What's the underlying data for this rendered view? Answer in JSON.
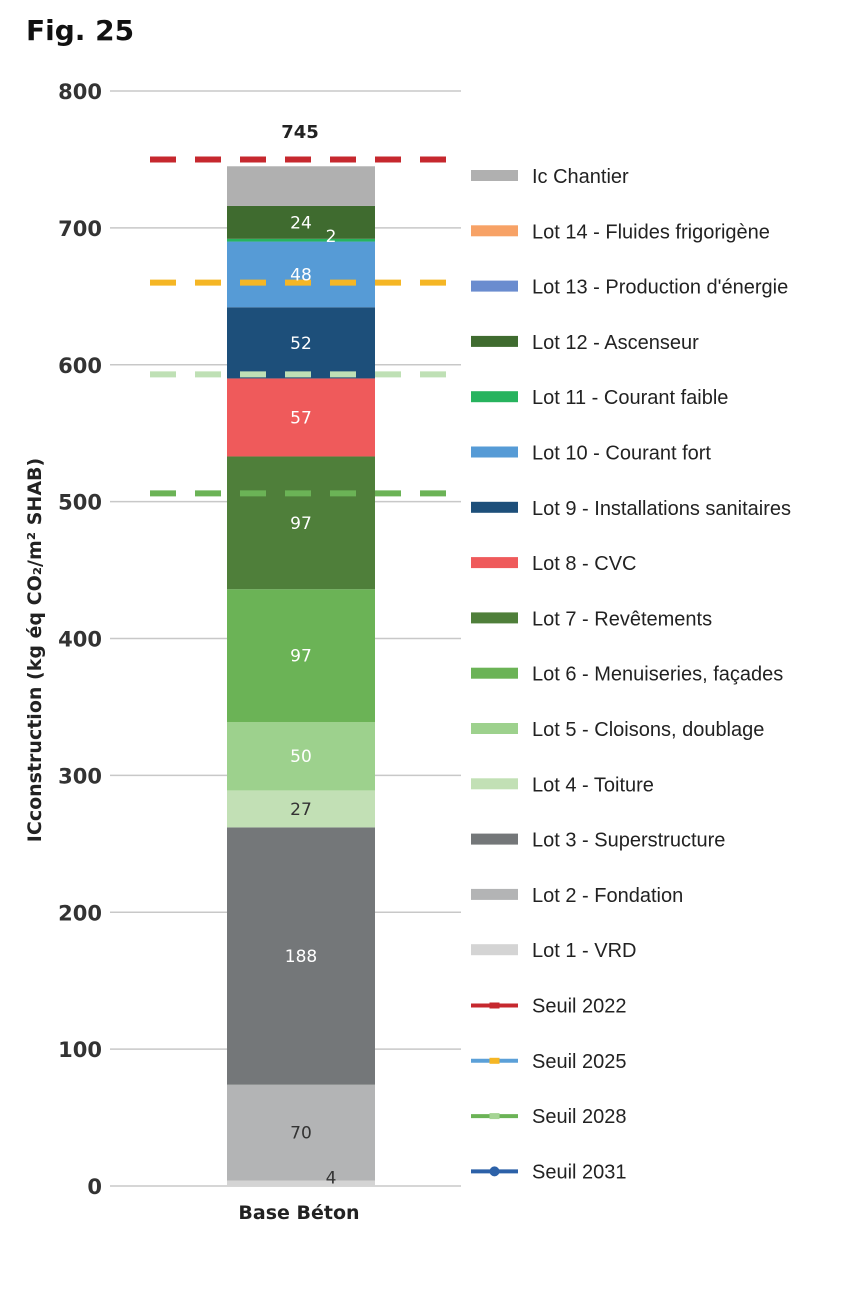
{
  "figure_label": "Fig. 25",
  "chart_data": {
    "type": "bar",
    "stacked": true,
    "categories": [
      "Base Béton"
    ],
    "ylabel": "ICconstruction (kg éq CO₂/m² SHAB)",
    "ylim": [
      0,
      800
    ],
    "yticks": [
      0,
      100,
      200,
      300,
      400,
      500,
      600,
      700,
      800
    ],
    "grid": true,
    "legend_position": "right",
    "total_label": "745",
    "series": [
      {
        "name": "Lot 1 - VRD",
        "values": [
          4
        ],
        "label": "4",
        "color": "#d4d4d4",
        "label_color": "#333333"
      },
      {
        "name": "Lot 2 - Fondation",
        "values": [
          70
        ],
        "label": "70",
        "color": "#b3b4b5",
        "label_color": "#333333"
      },
      {
        "name": "Lot 3 - Superstructure",
        "values": [
          188
        ],
        "label": "188",
        "color": "#747779",
        "label_color": "#ffffff"
      },
      {
        "name": "Lot 4 - Toiture",
        "values": [
          27
        ],
        "label": "27",
        "color": "#c2e0b5",
        "label_color": "#333333"
      },
      {
        "name": "Lot 5 - Cloisons, doublage",
        "values": [
          50
        ],
        "label": "50",
        "color": "#9dd18d",
        "label_color": "#ffffff"
      },
      {
        "name": "Lot 6 - Menuiseries, façades",
        "values": [
          97
        ],
        "label": "97",
        "color": "#6bb356",
        "label_color": "#ffffff"
      },
      {
        "name": "Lot 7 - Revêtements",
        "values": [
          97
        ],
        "label": "97",
        "color": "#4f7f3a",
        "label_color": "#ffffff"
      },
      {
        "name": "Lot 8 - CVC",
        "values": [
          57
        ],
        "label": "57",
        "color": "#ef5a5b",
        "label_color": "#ffffff"
      },
      {
        "name": "Lot 9 - Installations sanitaires",
        "values": [
          52
        ],
        "label": "52",
        "color": "#1d4f7a",
        "label_color": "#ffffff"
      },
      {
        "name": "Lot 10 - Courant fort",
        "values": [
          48
        ],
        "label": "48",
        "color": "#569bd6",
        "label_color": "#ffffff"
      },
      {
        "name": "Lot 11 - Courant faible",
        "values": [
          2
        ],
        "label": "2",
        "color": "#27b35e",
        "label_color": "#ffffff"
      },
      {
        "name": "Lot 12 - Ascenseur",
        "values": [
          24
        ],
        "label": "24",
        "color": "#3f6b2f",
        "label_color": "#ffffff"
      },
      {
        "name": "Lot 13 - Production d'énergie",
        "values": [
          0
        ],
        "label": "",
        "color": "#6a8ccf",
        "label_color": "#ffffff"
      },
      {
        "name": "Lot 14 - Fluides frigorigène",
        "values": [
          0
        ],
        "label": "",
        "color": "#f7a266",
        "label_color": "#ffffff"
      },
      {
        "name": "Ic Chantier",
        "values": [
          29
        ],
        "label": "",
        "color": "#b0b0b0",
        "label_color": "#333333"
      }
    ],
    "thresholds": [
      {
        "name": "Seuil 2022",
        "value": 750,
        "line_color": "#c6282e",
        "legend_line": "#c6282e",
        "marker": "dash",
        "marker_color": "#c6282e"
      },
      {
        "name": "Seuil 2025",
        "value": 660,
        "line_color": "#f5b625",
        "legend_line": "#5ba0d8",
        "marker": "dash",
        "marker_color": "#f5b625"
      },
      {
        "name": "Seuil 2028",
        "value": 593,
        "line_color": "#bfe0b5",
        "legend_line": "#6bb356",
        "marker": "dash",
        "marker_color": "#a5d494"
      },
      {
        "name": "Seuil 2031",
        "value": 506,
        "line_color": "#6bb356",
        "legend_line": "#2c61a8",
        "marker": "dot",
        "marker_color": "#2c61a8"
      }
    ]
  }
}
